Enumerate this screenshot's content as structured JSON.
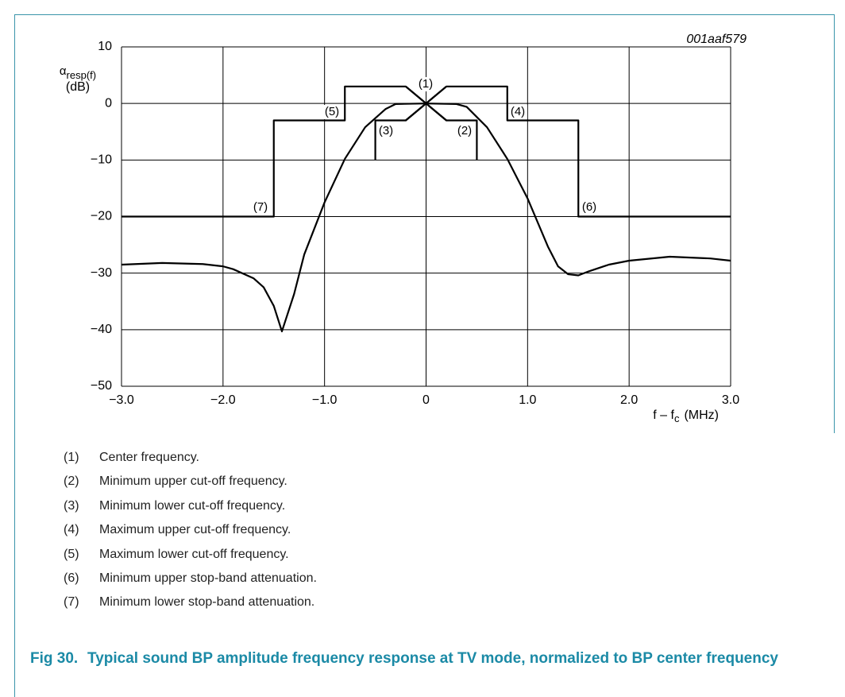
{
  "chart_data": {
    "type": "line",
    "code": "001aaf579",
    "ylabel": {
      "symbol": "α",
      "subscript": "resp(f)",
      "unit": "(dB)"
    },
    "xlabel": {
      "main": "f – f",
      "subscript": "c",
      "unit": "(MHz)"
    },
    "xlim": [
      -3.0,
      3.0
    ],
    "xticks": [
      {
        "value": -3.0,
        "label": "−3.0"
      },
      {
        "value": -2.0,
        "label": "−2.0"
      },
      {
        "value": -1.0,
        "label": "−1.0"
      },
      0,
      {
        "value": 1.0,
        "label": "1.0"
      },
      {
        "value": 2.0,
        "label": "2.0"
      },
      {
        "value": 3.0,
        "label": "3.0"
      }
    ],
    "ylim": [
      -50,
      10
    ],
    "yticks": [
      10,
      0,
      {
        "value": -10,
        "label": "−10"
      },
      {
        "value": -20,
        "label": "−20"
      },
      {
        "value": -30,
        "label": "−30"
      },
      {
        "value": -40,
        "label": "−40"
      },
      {
        "value": -50,
        "label": "−50"
      }
    ],
    "grid": true,
    "series": [
      {
        "color": "#000000",
        "x": [
          -3,
          -1.5,
          -1.5,
          -0.8,
          -0.8,
          -0.2,
          0,
          0.2,
          0.8,
          0.8,
          1.5,
          1.5,
          3
        ],
        "values": [
          -20,
          -20,
          -3,
          -3,
          3,
          3,
          0,
          3,
          3,
          -3,
          -3,
          -20,
          -20
        ]
      },
      {
        "color": "#000000",
        "x": [
          -0.5,
          -0.5,
          -0.2,
          0,
          0.2,
          0.5,
          0.5
        ],
        "values": [
          -10,
          -3,
          -3,
          0,
          -3,
          -3,
          -10
        ]
      },
      {
        "color": "#000000",
        "x": [
          -0.2,
          0.2
        ],
        "values": [
          -3,
          3
        ]
      },
      {
        "color": "#000000",
        "x": [
          -0.2,
          0.2
        ],
        "values": [
          3,
          -3
        ]
      },
      {
        "color": "#000000",
        "x": [
          -3.0,
          -2.6,
          -2.2,
          -2.0,
          -1.9,
          -1.7,
          -1.6,
          -1.5,
          -1.42,
          -1.3,
          -1.2,
          -1.0,
          -0.8,
          -0.6,
          -0.4,
          -0.3,
          0,
          0.3,
          0.4,
          0.6,
          0.8,
          1.0,
          1.2,
          1.3,
          1.4,
          1.5,
          1.6,
          1.8,
          2.0,
          2.4,
          2.8,
          3.0
        ],
        "values": [
          -28.5,
          -28.2,
          -28.4,
          -28.8,
          -29.3,
          -30.9,
          -32.5,
          -35.8,
          -40.3,
          -33.7,
          -26.7,
          -17.5,
          -9.8,
          -4.2,
          -1.0,
          -0.1,
          0,
          -0.1,
          -0.6,
          -4.2,
          -9.8,
          -16.8,
          -25.3,
          -28.8,
          -30.2,
          -30.4,
          -29.7,
          -28.5,
          -27.8,
          -27.1,
          -27.4,
          -27.8
        ]
      }
    ],
    "annotations": [
      "(1)",
      "(2)",
      "(3)",
      "(4)",
      "(5)",
      "(6)",
      "(7)"
    ]
  },
  "notes": [
    {
      "num": "(1)",
      "text": "Center frequency."
    },
    {
      "num": "(2)",
      "text": "Minimum upper cut-off frequency."
    },
    {
      "num": "(3)",
      "text": "Minimum lower cut-off frequency."
    },
    {
      "num": "(4)",
      "text": "Maximum upper cut-off frequency."
    },
    {
      "num": "(5)",
      "text": "Maximum lower cut-off frequency."
    },
    {
      "num": "(6)",
      "text": "Minimum upper stop-band attenuation."
    },
    {
      "num": "(7)",
      "text": "Minimum lower stop-band attenuation."
    }
  ],
  "caption": {
    "label": "Fig 30.",
    "text": "Typical sound BP amplitude frequency response at TV mode, normalized to BP center frequency"
  }
}
